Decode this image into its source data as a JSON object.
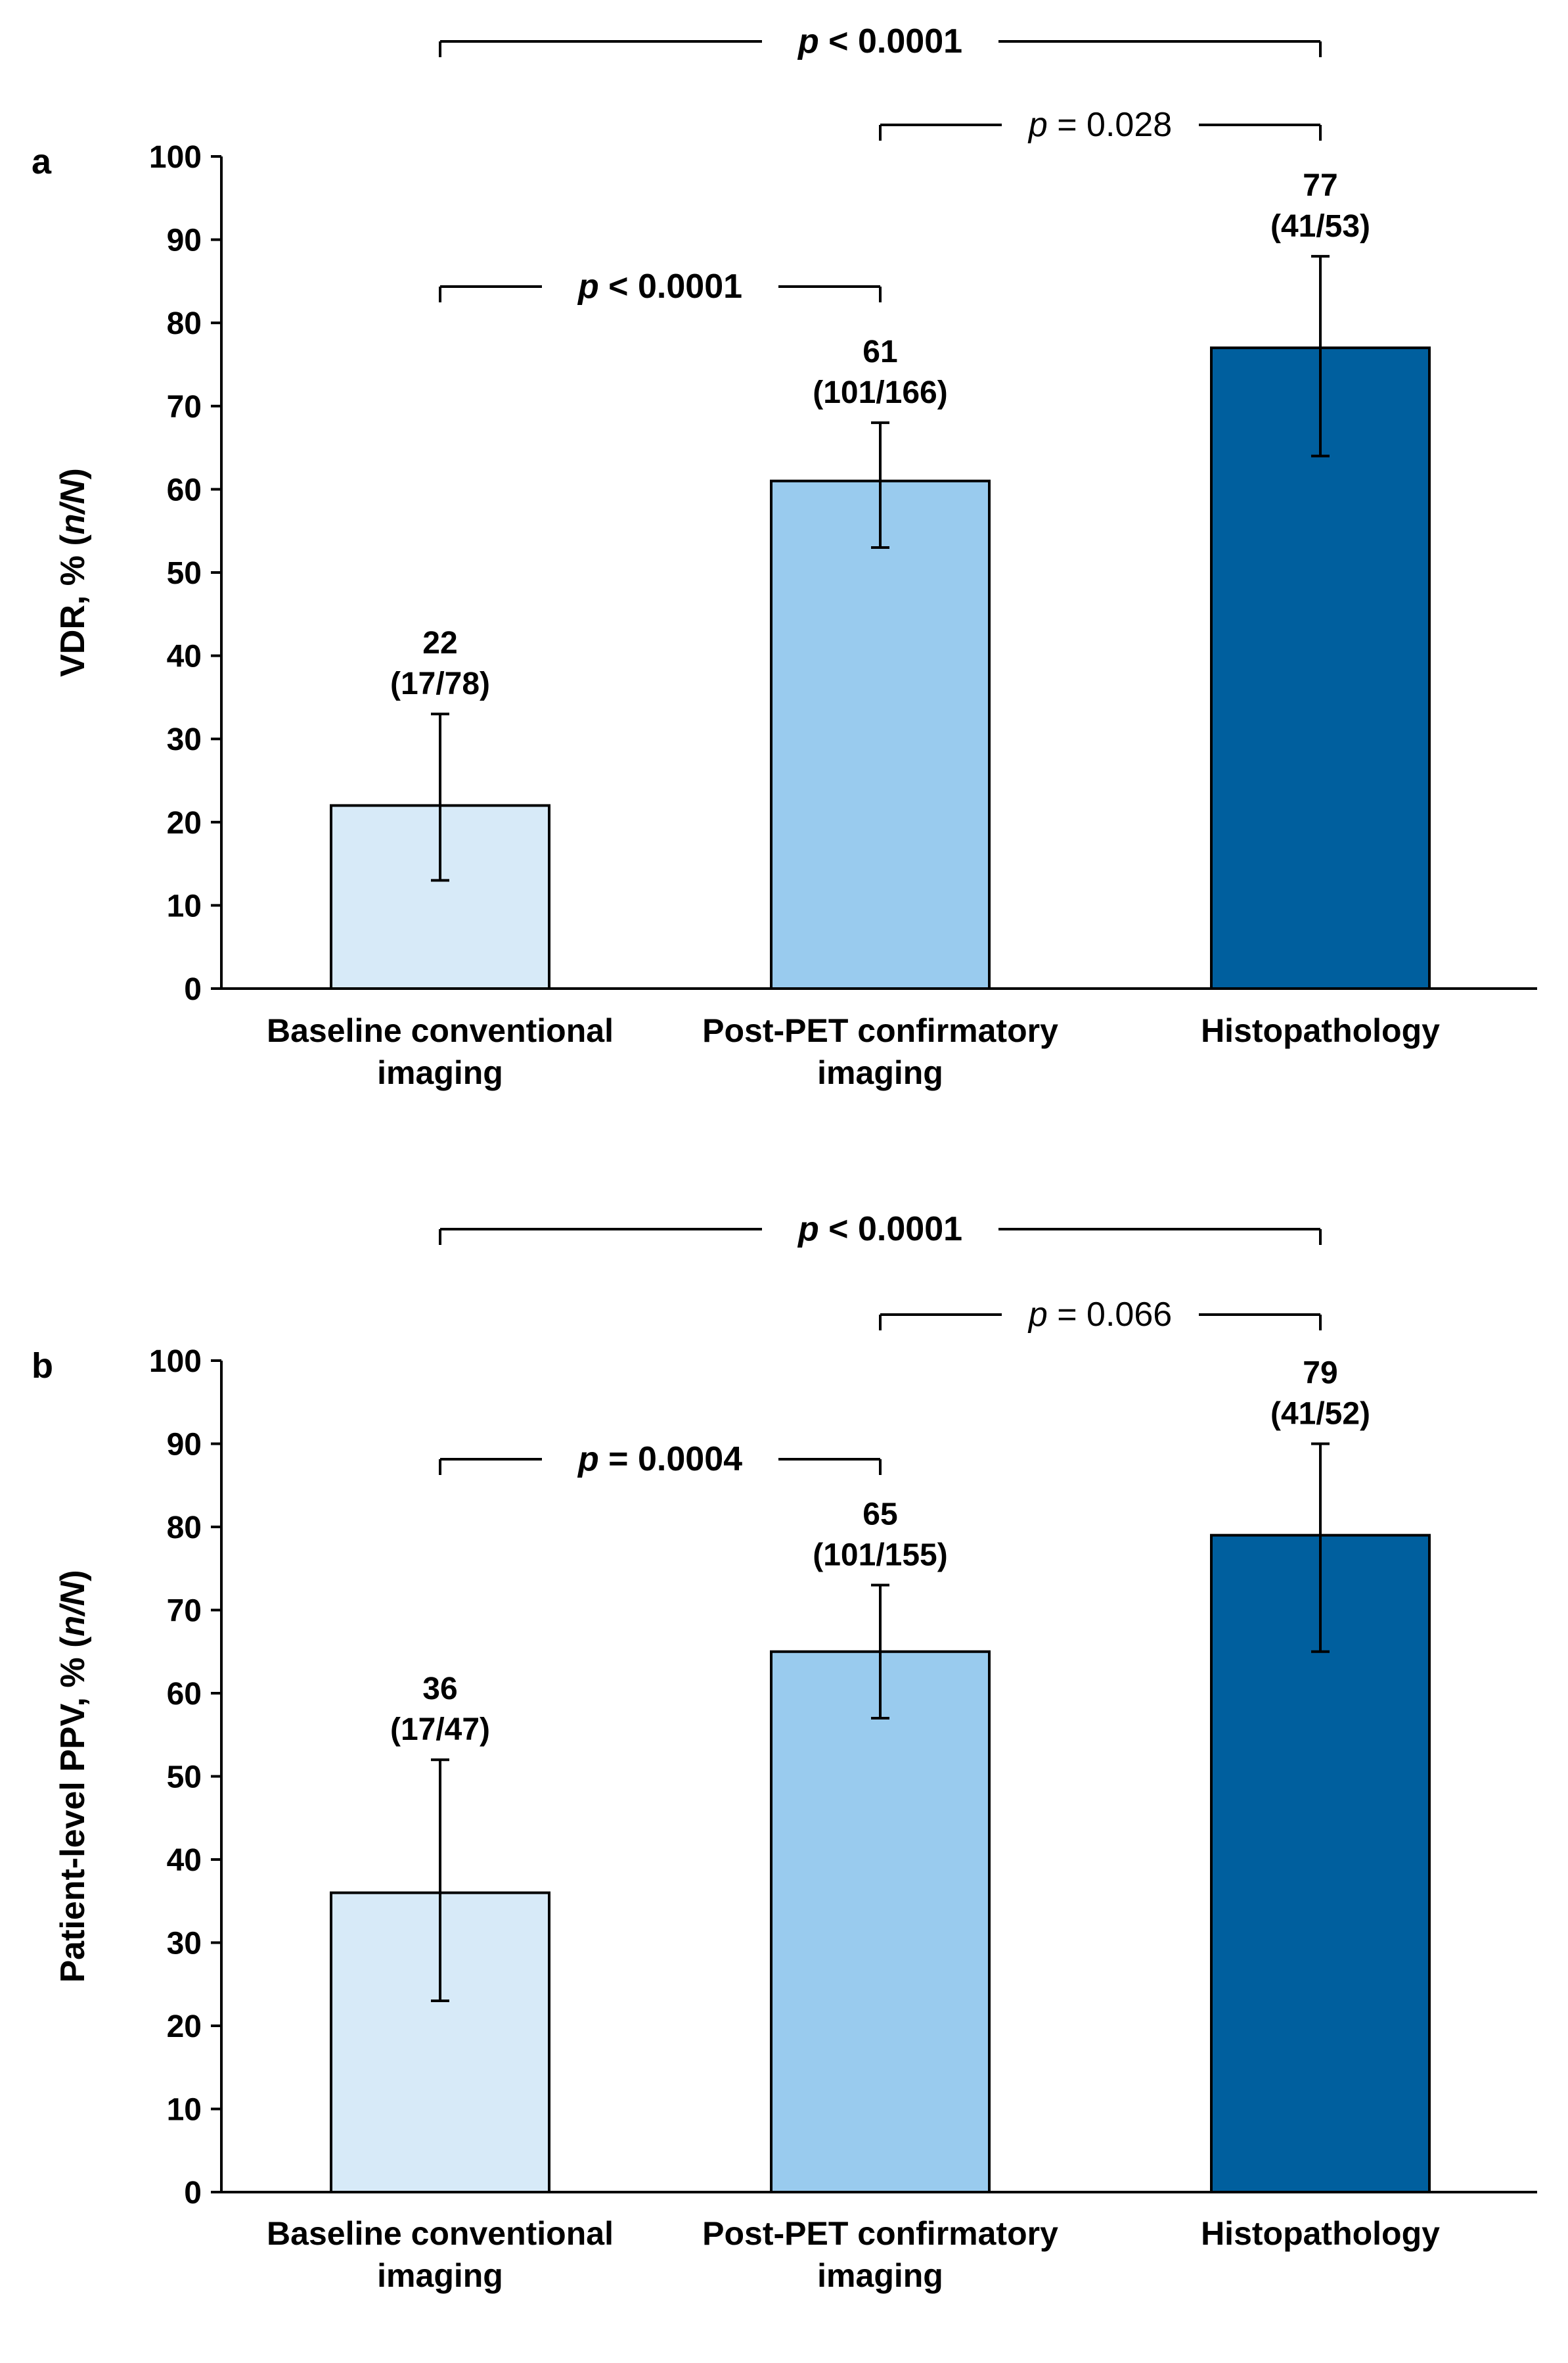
{
  "chart_data": [
    {
      "panel_label": "a",
      "type": "bar",
      "ylabel_parts": [
        "VDR, % (",
        "n/N",
        ")"
      ],
      "ylim": [
        0,
        100
      ],
      "yticks": [
        0,
        10,
        20,
        30,
        40,
        50,
        60,
        70,
        80,
        90,
        100
      ],
      "categories": [
        [
          "Baseline conventional",
          "imaging"
        ],
        [
          "Post-PET confirmatory",
          "imaging"
        ],
        [
          "Histopathology"
        ]
      ],
      "values": [
        22,
        61,
        77
      ],
      "error_low": [
        13,
        53,
        64
      ],
      "error_high": [
        33,
        68,
        88
      ],
      "data_labels": [
        [
          "22",
          "(17/78)"
        ],
        [
          "61",
          "(101/166)"
        ],
        [
          "77",
          "(41/53)"
        ]
      ],
      "comparisons": [
        {
          "from": 0,
          "to": 2,
          "p_symbol": "p",
          "p_text": " < 0.0001",
          "bold": true
        },
        {
          "from": 1,
          "to": 2,
          "p_symbol": "p",
          "p_text": " = 0.028",
          "bold": false
        },
        {
          "from": 0,
          "to": 1,
          "p_symbol": "p",
          "p_text": " < 0.0001",
          "bold": true
        }
      ]
    },
    {
      "panel_label": "b",
      "type": "bar",
      "ylabel_parts": [
        "Patient-level PPV, % (",
        "n/N",
        ")"
      ],
      "ylim": [
        0,
        100
      ],
      "yticks": [
        0,
        10,
        20,
        30,
        40,
        50,
        60,
        70,
        80,
        90,
        100
      ],
      "categories": [
        [
          "Baseline conventional",
          "imaging"
        ],
        [
          "Post-PET confirmatory",
          "imaging"
        ],
        [
          "Histopathology"
        ]
      ],
      "values": [
        36,
        65,
        79
      ],
      "error_low": [
        23,
        57,
        65
      ],
      "error_high": [
        52,
        73,
        90
      ],
      "data_labels": [
        [
          "36",
          "(17/47)"
        ],
        [
          "65",
          "(101/155)"
        ],
        [
          "79",
          "(41/52)"
        ]
      ],
      "comparisons": [
        {
          "from": 0,
          "to": 2,
          "p_symbol": "p",
          "p_text": " < 0.0001",
          "bold": true
        },
        {
          "from": 1,
          "to": 2,
          "p_symbol": "p",
          "p_text": " = 0.066",
          "bold": false
        },
        {
          "from": 0,
          "to": 1,
          "p_symbol": "p",
          "p_text": " = 0.0004",
          "bold": true
        }
      ]
    }
  ],
  "colors": {
    "bars": [
      "#d7eaf8",
      "#99cbee",
      "#005f9e"
    ],
    "outline": "#000000",
    "axis": "#000000"
  }
}
